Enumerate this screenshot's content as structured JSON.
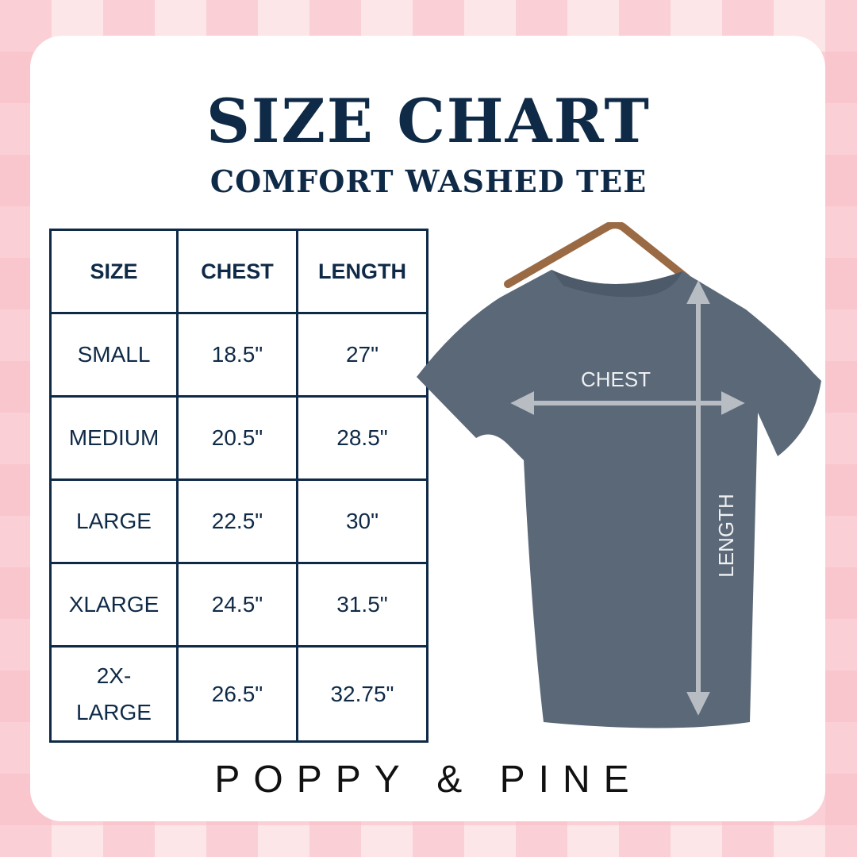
{
  "title": "SIZE CHART",
  "subtitle": "COMFORT WASHED TEE",
  "table": {
    "headers": [
      "SIZE",
      "CHEST",
      "LENGTH"
    ],
    "rows": [
      {
        "size": "SMALL",
        "chest": "18.5\"",
        "length": "27\""
      },
      {
        "size": "MEDIUM",
        "chest": "20.5\"",
        "length": "28.5\""
      },
      {
        "size": "LARGE",
        "chest": "22.5\"",
        "length": "30\""
      },
      {
        "size": "XLARGE",
        "chest": "24.5\"",
        "length": "31.5\""
      },
      {
        "size": "2X-LARGE",
        "chest": "26.5\"",
        "length": "32.75\""
      }
    ]
  },
  "diagram": {
    "chest_label": "CHEST",
    "length_label": "LENGTH"
  },
  "brand": "POPPY & PINE",
  "colors": {
    "navy": "#0f2a47",
    "shirt": "#5b6878",
    "background_pink": "#fde6e8"
  }
}
